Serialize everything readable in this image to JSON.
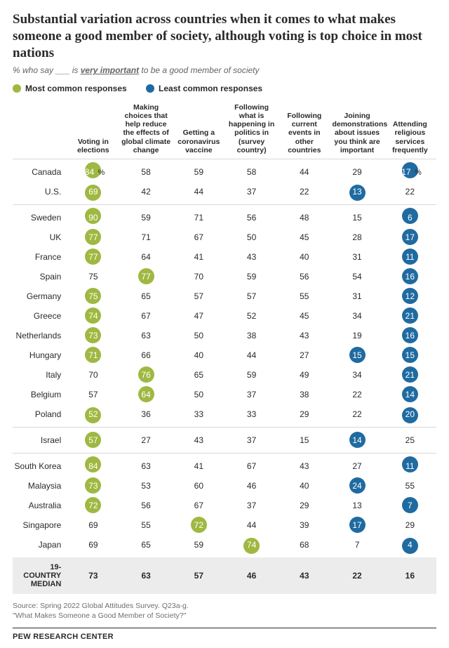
{
  "title": "Substantial variation across countries when it comes to what makes someone a good member of society, although voting is top choice in most nations",
  "subtitle_pre": "% who say ___ is ",
  "subtitle_em": "very important",
  "subtitle_post": " to be a good member of society",
  "legend": {
    "most": {
      "label": "Most common responses",
      "color": "#9fb841"
    },
    "least": {
      "label": "Least common responses",
      "color": "#1f6ba1"
    }
  },
  "colors": {
    "most_fill": "#9fb841",
    "least_fill": "#1f6ba1",
    "median_bg": "#ececec",
    "text": "#2a2a2a",
    "muted": "#646464",
    "rule": "#d9d9d9"
  },
  "columns": [
    "Voting in elections",
    "Making choices that help reduce the effects of global climate change",
    "Getting a coronavirus vaccine",
    "Following what is happening in politics in (survey country)",
    "Following current events in other countries",
    "Joining demonstrations about issues you think are important",
    "Attending religious services frequently"
  ],
  "groups": [
    {
      "rows": [
        {
          "name": "Canada",
          "v": [
            {
              "n": 84,
              "m": "most",
              "pct": true
            },
            {
              "n": 58
            },
            {
              "n": 59
            },
            {
              "n": 58
            },
            {
              "n": 44
            },
            {
              "n": 29
            },
            {
              "n": 17,
              "m": "least",
              "pct": true
            }
          ]
        },
        {
          "name": "U.S.",
          "v": [
            {
              "n": 69,
              "m": "most"
            },
            {
              "n": 42
            },
            {
              "n": 44
            },
            {
              "n": 37
            },
            {
              "n": 22
            },
            {
              "n": 13,
              "m": "least"
            },
            {
              "n": 22
            }
          ]
        }
      ]
    },
    {
      "rows": [
        {
          "name": "Sweden",
          "v": [
            {
              "n": 90,
              "m": "most"
            },
            {
              "n": 59
            },
            {
              "n": 71
            },
            {
              "n": 56
            },
            {
              "n": 48
            },
            {
              "n": 15
            },
            {
              "n": 6,
              "m": "least"
            }
          ]
        },
        {
          "name": "UK",
          "v": [
            {
              "n": 77,
              "m": "most"
            },
            {
              "n": 71
            },
            {
              "n": 67
            },
            {
              "n": 50
            },
            {
              "n": 45
            },
            {
              "n": 28
            },
            {
              "n": 17,
              "m": "least"
            }
          ]
        },
        {
          "name": "France",
          "v": [
            {
              "n": 77,
              "m": "most"
            },
            {
              "n": 64
            },
            {
              "n": 41
            },
            {
              "n": 43
            },
            {
              "n": 40
            },
            {
              "n": 31
            },
            {
              "n": 11,
              "m": "least"
            }
          ]
        },
        {
          "name": "Spain",
          "v": [
            {
              "n": 75
            },
            {
              "n": 77,
              "m": "most"
            },
            {
              "n": 70
            },
            {
              "n": 59
            },
            {
              "n": 56
            },
            {
              "n": 54
            },
            {
              "n": 16,
              "m": "least"
            }
          ]
        },
        {
          "name": "Germany",
          "v": [
            {
              "n": 75,
              "m": "most"
            },
            {
              "n": 65
            },
            {
              "n": 57
            },
            {
              "n": 57
            },
            {
              "n": 55
            },
            {
              "n": 31
            },
            {
              "n": 12,
              "m": "least"
            }
          ]
        },
        {
          "name": "Greece",
          "v": [
            {
              "n": 74,
              "m": "most"
            },
            {
              "n": 67
            },
            {
              "n": 47
            },
            {
              "n": 52
            },
            {
              "n": 45
            },
            {
              "n": 34
            },
            {
              "n": 21,
              "m": "least"
            }
          ]
        },
        {
          "name": "Netherlands",
          "v": [
            {
              "n": 73,
              "m": "most"
            },
            {
              "n": 63
            },
            {
              "n": 50
            },
            {
              "n": 38
            },
            {
              "n": 43
            },
            {
              "n": 19
            },
            {
              "n": 16,
              "m": "least"
            }
          ]
        },
        {
          "name": "Hungary",
          "v": [
            {
              "n": 71,
              "m": "most"
            },
            {
              "n": 66
            },
            {
              "n": 40
            },
            {
              "n": 44
            },
            {
              "n": 27
            },
            {
              "n": 15,
              "m": "least"
            },
            {
              "n": 15,
              "m": "least"
            }
          ]
        },
        {
          "name": "Italy",
          "v": [
            {
              "n": 70
            },
            {
              "n": 76,
              "m": "most"
            },
            {
              "n": 65
            },
            {
              "n": 59
            },
            {
              "n": 49
            },
            {
              "n": 34
            },
            {
              "n": 21,
              "m": "least"
            }
          ]
        },
        {
          "name": "Belgium",
          "v": [
            {
              "n": 57
            },
            {
              "n": 64,
              "m": "most"
            },
            {
              "n": 50
            },
            {
              "n": 37
            },
            {
              "n": 38
            },
            {
              "n": 22
            },
            {
              "n": 14,
              "m": "least"
            }
          ]
        },
        {
          "name": "Poland",
          "v": [
            {
              "n": 52,
              "m": "most"
            },
            {
              "n": 36
            },
            {
              "n": 33
            },
            {
              "n": 33
            },
            {
              "n": 29
            },
            {
              "n": 22
            },
            {
              "n": 20,
              "m": "least"
            }
          ]
        }
      ]
    },
    {
      "rows": [
        {
          "name": "Israel",
          "v": [
            {
              "n": 57,
              "m": "most"
            },
            {
              "n": 27
            },
            {
              "n": 43
            },
            {
              "n": 37
            },
            {
              "n": 15
            },
            {
              "n": 14,
              "m": "least"
            },
            {
              "n": 25
            }
          ]
        }
      ]
    },
    {
      "rows": [
        {
          "name": "South Korea",
          "v": [
            {
              "n": 84,
              "m": "most"
            },
            {
              "n": 63
            },
            {
              "n": 41
            },
            {
              "n": 67
            },
            {
              "n": 43
            },
            {
              "n": 27
            },
            {
              "n": 11,
              "m": "least"
            }
          ]
        },
        {
          "name": "Malaysia",
          "v": [
            {
              "n": 73,
              "m": "most"
            },
            {
              "n": 53
            },
            {
              "n": 60
            },
            {
              "n": 46
            },
            {
              "n": 40
            },
            {
              "n": 24,
              "m": "least"
            },
            {
              "n": 55
            }
          ]
        },
        {
          "name": "Australia",
          "v": [
            {
              "n": 72,
              "m": "most"
            },
            {
              "n": 56
            },
            {
              "n": 67
            },
            {
              "n": 37
            },
            {
              "n": 29
            },
            {
              "n": 13
            },
            {
              "n": 7,
              "m": "least"
            }
          ]
        },
        {
          "name": "Singapore",
          "v": [
            {
              "n": 69
            },
            {
              "n": 55
            },
            {
              "n": 72,
              "m": "most"
            },
            {
              "n": 44
            },
            {
              "n": 39
            },
            {
              "n": 17,
              "m": "least"
            },
            {
              "n": 29
            }
          ]
        },
        {
          "name": "Japan",
          "v": [
            {
              "n": 69
            },
            {
              "n": 65
            },
            {
              "n": 59
            },
            {
              "n": 74,
              "m": "most"
            },
            {
              "n": 68
            },
            {
              "n": 7
            },
            {
              "n": 4,
              "m": "least"
            }
          ]
        }
      ]
    }
  ],
  "median": {
    "label": "19-COUNTRY MEDIAN",
    "v": [
      73,
      63,
      57,
      46,
      43,
      22,
      16
    ]
  },
  "source_line": "Source: Spring 2022 Global Attitudes Survey. Q23a-g.",
  "report_line": "\"What Makes Someone a Good Member of Society?\"",
  "brand": "PEW RESEARCH CENTER"
}
